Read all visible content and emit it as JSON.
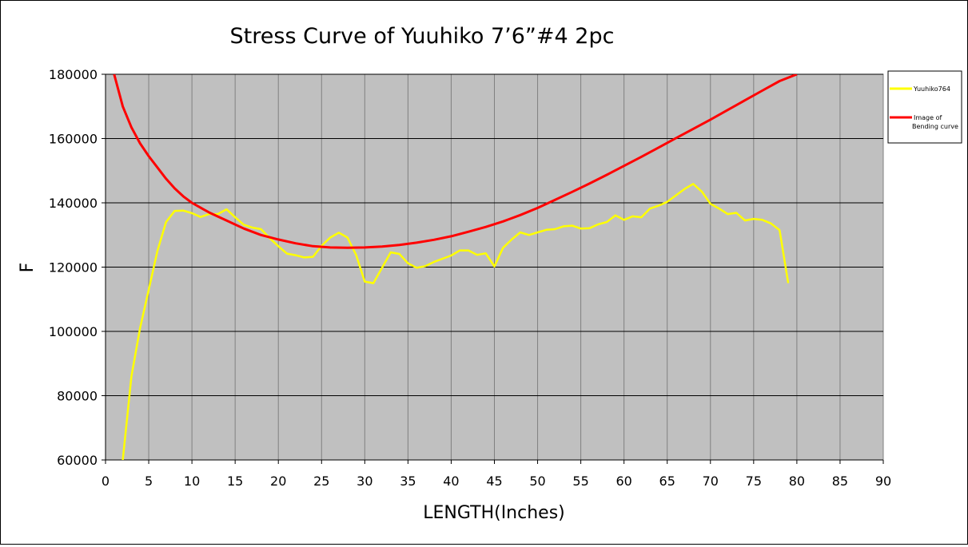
{
  "chart_data": {
    "type": "line",
    "title": "Stress Curve of Yuuhiko 7’6”#4  2pc",
    "xlabel": "LENGTH(Inches)",
    "ylabel": "F",
    "xlim": [
      0,
      90
    ],
    "ylim": [
      60000,
      180000
    ],
    "x_ticks": [
      0,
      5,
      10,
      15,
      20,
      25,
      30,
      35,
      40,
      45,
      50,
      55,
      60,
      65,
      70,
      75,
      80,
      85,
      90
    ],
    "y_ticks": [
      60000,
      80000,
      100000,
      120000,
      140000,
      160000,
      180000
    ],
    "grid": true,
    "plot_background": "#c0c0c0",
    "legend_position": "right",
    "series": [
      {
        "name": "Yuuhiko764",
        "color": "#ffff00",
        "x": [
          2,
          3,
          4,
          5,
          6,
          7,
          8,
          9,
          10,
          11,
          12,
          13,
          14,
          15,
          16,
          17,
          18,
          19,
          20,
          21,
          22,
          23,
          24,
          25,
          26,
          27,
          28,
          29,
          30,
          31,
          32,
          33,
          34,
          35,
          36,
          37,
          38,
          39,
          40,
          41,
          42,
          43,
          44,
          45,
          46,
          47,
          48,
          49,
          50,
          51,
          52,
          53,
          54,
          55,
          56,
          57,
          58,
          59,
          60,
          61,
          62,
          63,
          64,
          65,
          66,
          67,
          68,
          69,
          70,
          71,
          72,
          73,
          74,
          75,
          76,
          77,
          78,
          79
        ],
        "y": [
          60000,
          86000,
          101000,
          113000,
          125000,
          134000,
          137500,
          137600,
          136800,
          135600,
          136500,
          136500,
          138000,
          135500,
          133200,
          132300,
          131800,
          129000,
          126500,
          124200,
          123700,
          123000,
          123200,
          126600,
          129200,
          130700,
          129200,
          123800,
          115500,
          115000,
          119800,
          124600,
          124100,
          121200,
          119800,
          120300,
          121600,
          122600,
          123600,
          125200,
          125200,
          123800,
          124300,
          120200,
          126000,
          128600,
          130800,
          130000,
          130800,
          131600,
          131800,
          132700,
          132900,
          132000,
          132100,
          133300,
          134000,
          136100,
          134700,
          135800,
          135500,
          138200,
          139100,
          140300,
          142300,
          144300,
          145900,
          143500,
          139700,
          138200,
          136500,
          136900,
          134500,
          135000,
          134700,
          133600,
          131500,
          115000
        ]
      },
      {
        "name": "Image of Bending curve",
        "color": "#ff0000",
        "x": [
          1,
          2,
          3,
          4,
          5,
          6,
          7,
          8,
          9,
          10,
          12,
          14,
          16,
          18,
          20,
          22,
          24,
          26,
          28,
          30,
          32,
          34,
          36,
          38,
          40,
          42,
          44,
          46,
          48,
          50,
          52,
          54,
          56,
          58,
          60,
          62,
          64,
          66,
          68,
          70,
          72,
          74,
          76,
          78,
          80
        ],
        "y": [
          180000,
          170000,
          163500,
          158500,
          154500,
          151000,
          147500,
          144500,
          142000,
          140000,
          137000,
          134500,
          132000,
          130000,
          128600,
          127400,
          126500,
          126100,
          126000,
          126100,
          126400,
          126900,
          127600,
          128500,
          129600,
          131000,
          132500,
          134200,
          136200,
          138400,
          140900,
          143400,
          146000,
          148700,
          151500,
          154300,
          157200,
          160100,
          163000,
          165900,
          168900,
          171900,
          174900,
          177900,
          180000
        ]
      }
    ]
  }
}
